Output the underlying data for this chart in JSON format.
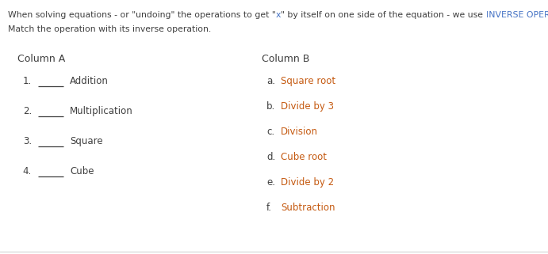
{
  "bg_color": "#ffffff",
  "text_color_normal": "#3f3f3f",
  "text_color_blue": "#4472c4",
  "text_color_orange": "#c55a11",
  "header_fs": 7.8,
  "body_fs": 8.5,
  "col_header_fs": 9.0,
  "figsize": [
    6.91,
    3.21
  ],
  "dpi": 100,
  "col_a_items": [
    {
      "num": "1.",
      "text": "Addition"
    },
    {
      "num": "2.",
      "text": "Multiplication"
    },
    {
      "num": "3.",
      "text": "Square"
    },
    {
      "num": "4.",
      "text": "Cube"
    }
  ],
  "col_b_items": [
    {
      "letter": "a.",
      "text": "Square root"
    },
    {
      "letter": "b.",
      "text": "Divide by 3"
    },
    {
      "letter": "c.",
      "text": "Division"
    },
    {
      "letter": "d.",
      "text": "Cube root"
    },
    {
      "letter": "e.",
      "text": "Divide by 2"
    },
    {
      "letter": "f.",
      "text": "Subtraction"
    }
  ]
}
